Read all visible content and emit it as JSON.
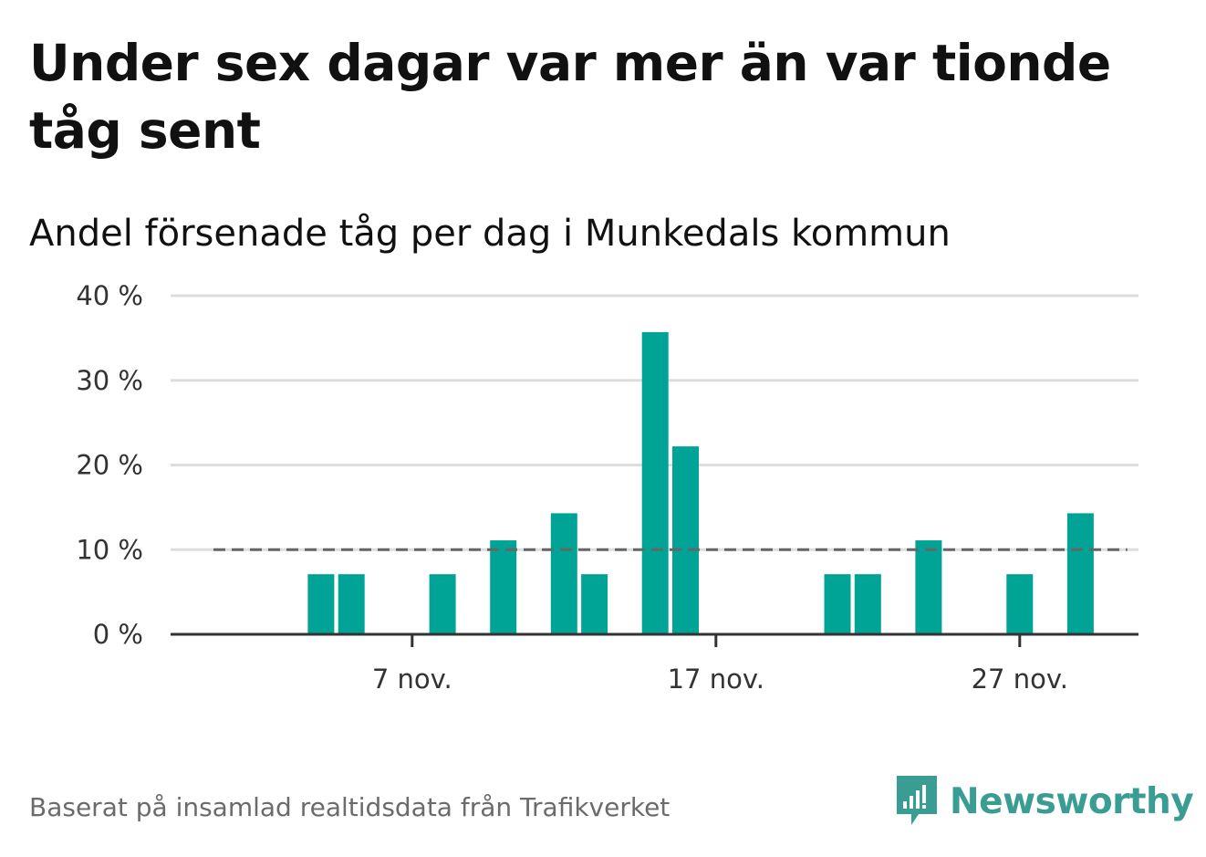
{
  "title": "Under sex dagar var mer än var tionde tåg sent",
  "subtitle": "Andel försenade tåg per dag i Munkedals kommun",
  "source": "Baserat på insamlad realtidsdata från Trafikverket",
  "brand": "Newsworthy",
  "colors": {
    "bar": "#00a497",
    "threshold": "#666666",
    "grid": "#dddddd",
    "axis": "#333333",
    "brand": "#3a9d94"
  },
  "chart_data": {
    "type": "bar",
    "x": [
      "2022-11-01",
      "2022-11-02",
      "2022-11-03",
      "2022-11-04",
      "2022-11-05",
      "2022-11-06",
      "2022-11-07",
      "2022-11-08",
      "2022-11-09",
      "2022-11-10",
      "2022-11-11",
      "2022-11-12",
      "2022-11-13",
      "2022-11-14",
      "2022-11-15",
      "2022-11-16",
      "2022-11-17",
      "2022-11-18",
      "2022-11-19",
      "2022-11-20",
      "2022-11-21",
      "2022-11-22",
      "2022-11-23",
      "2022-11-24",
      "2022-11-25",
      "2022-11-26",
      "2022-11-27",
      "2022-11-28",
      "2022-11-29",
      "2022-11-30"
    ],
    "values": [
      0,
      0,
      0,
      7.1,
      7.1,
      0,
      0,
      7.1,
      0,
      11.1,
      0,
      14.3,
      7.1,
      0,
      35.7,
      22.2,
      0,
      0,
      0,
      0,
      7.1,
      7.1,
      0,
      11.1,
      0,
      0,
      7.1,
      0,
      14.3,
      0
    ],
    "threshold": 10,
    "ylim": [
      0,
      40
    ],
    "yticks": [
      {
        "value": 0,
        "label": "0 %"
      },
      {
        "value": 10,
        "label": "10 %"
      },
      {
        "value": 20,
        "label": "20 %"
      },
      {
        "value": 30,
        "label": "30 %"
      },
      {
        "value": 40,
        "label": "40 %"
      }
    ],
    "xticks": [
      {
        "date": "2022-11-07",
        "label": "7 nov."
      },
      {
        "date": "2022-11-17",
        "label": "17 nov."
      },
      {
        "date": "2022-11-27",
        "label": "27 nov."
      }
    ],
    "grid": true
  }
}
